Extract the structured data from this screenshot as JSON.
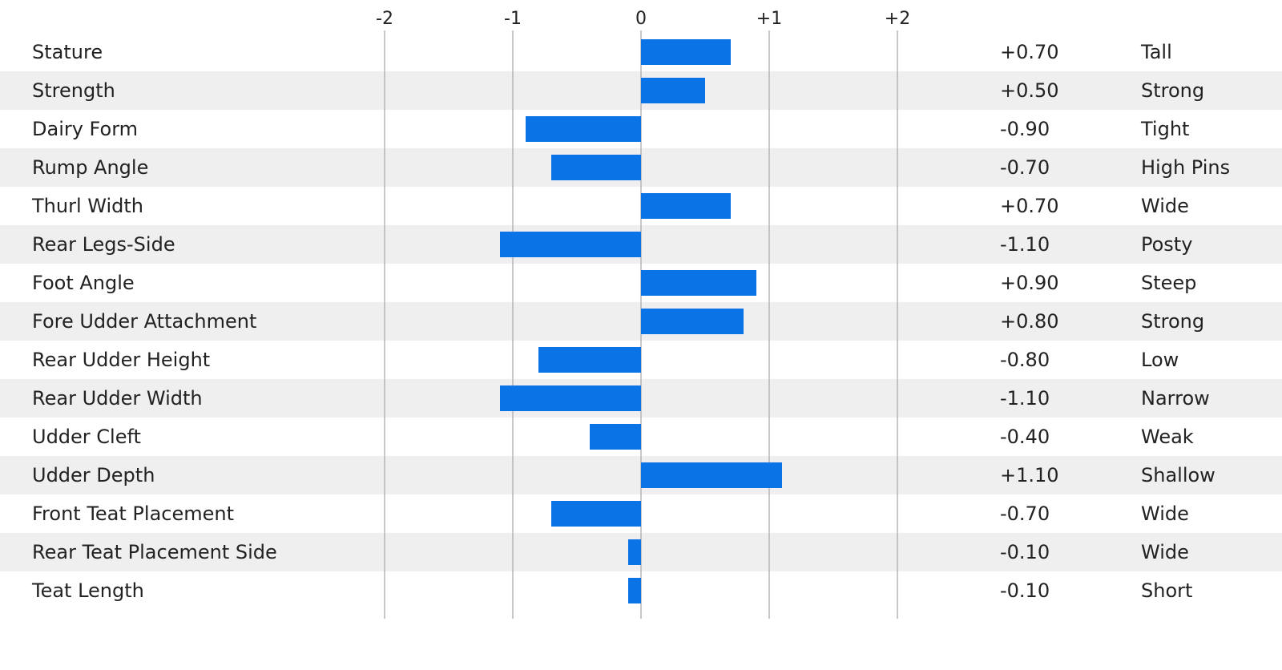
{
  "chart_data": {
    "type": "bar",
    "orientation": "horizontal",
    "title": "",
    "xlabel": "",
    "ylabel": "",
    "xlim": [
      -2,
      2
    ],
    "ticks": [
      -2,
      -1,
      0,
      1,
      2
    ],
    "tick_labels": [
      "-2",
      "-1",
      "0",
      "+1",
      "+2"
    ],
    "grid": true,
    "bar_color": "#0a73e6",
    "stripe_color": "#efefef",
    "gridline_color": "#b5b5b5",
    "categories": [
      "Stature",
      "Strength",
      "Dairy Form",
      "Rump Angle",
      "Thurl Width",
      "Rear Legs-Side",
      "Foot Angle",
      "Fore Udder Attachment",
      "Rear Udder Height",
      "Rear Udder Width",
      "Udder Cleft",
      "Udder Depth",
      "Front Teat Placement",
      "Rear Teat Placement Side",
      "Teat Length"
    ],
    "values": [
      0.7,
      0.5,
      -0.9,
      -0.7,
      0.7,
      -1.1,
      0.9,
      0.8,
      -0.8,
      -1.1,
      -0.4,
      1.1,
      -0.7,
      -0.1,
      -0.1
    ],
    "value_labels": [
      "+0.70",
      "+0.50",
      "-0.90",
      "-0.70",
      "+0.70",
      "-1.10",
      "+0.90",
      "+0.80",
      "-0.80",
      "-1.10",
      "-0.40",
      "+1.10",
      "-0.70",
      "-0.10",
      "-0.10"
    ],
    "descriptors": [
      "Tall",
      "Strong",
      "Tight",
      "High Pins",
      "Wide",
      "Posty",
      "Steep",
      "Strong",
      "Low",
      "Narrow",
      "Weak",
      "Shallow",
      "Wide",
      "Wide",
      "Short"
    ]
  }
}
